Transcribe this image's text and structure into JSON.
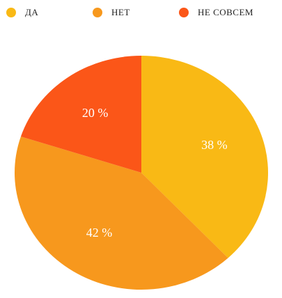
{
  "chart_data": {
    "type": "pie",
    "categories": [
      "ДА",
      "НЕТ",
      "НЕ СОВСЕМ"
    ],
    "values": [
      38,
      42,
      20
    ],
    "value_labels": [
      "38 %",
      "42 %",
      "20 %"
    ],
    "colors": [
      "#f9b915",
      "#f7981d",
      "#fb5618"
    ]
  }
}
